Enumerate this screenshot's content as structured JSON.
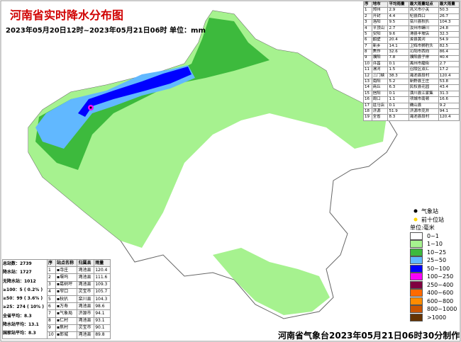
{
  "header": {
    "title": "河南省实时降水分布图",
    "subtitle": "2023年05月20日12时~2023年05月21日06时 单位：mm"
  },
  "city_table": {
    "columns": [
      "序",
      "地市",
      "平均雨量",
      "最大雨量站点",
      "最大雨量"
    ],
    "rows": [
      [
        "1",
        "郑州",
        "2.9",
        "巩义市小关",
        "50.3"
      ],
      [
        "2",
        "开封",
        "4.4",
        "杞县西口",
        "26.7"
      ],
      [
        "3",
        "洛阳",
        "9.5",
        "栾川县秋扒",
        "104.3"
      ],
      [
        "4",
        "平顶山",
        "2.7",
        "汝州市蟒川",
        "24.8"
      ],
      [
        "5",
        "安阳",
        "9.6",
        "滑县半坡店",
        "32.3"
      ],
      [
        "6",
        "鹤壁",
        "20.4",
        "浚县黄河",
        "54.9"
      ],
      [
        "7",
        "新乡",
        "14.1",
        "卫辉市狮豹头",
        "82.5"
      ],
      [
        "8",
        "焦作",
        "32.6",
        "沁阳市西向",
        "86.4"
      ],
      [
        "9",
        "濮阳",
        "7.8",
        "濮阳县子岸",
        "40.4"
      ],
      [
        "10",
        "许昌",
        "0.1",
        "禹州市磨街",
        "2.7"
      ],
      [
        "11",
        "漯河",
        "1.5",
        "召陵区双汇",
        "17.2"
      ],
      [
        "12",
        "三门峡",
        "38.3",
        "渑池县段村",
        "120.4"
      ],
      [
        "13",
        "南阳",
        "5.2",
        "新野县王庄",
        "53.8"
      ],
      [
        "14",
        "商丘",
        "6.3",
        "民权县花园",
        "43.4"
      ],
      [
        "15",
        "信阳",
        "0.1",
        "潢川县江家集",
        "31.3"
      ],
      [
        "16",
        "周口",
        "1.1",
        "项城市南顿",
        "16.6"
      ],
      [
        "17",
        "驻马店",
        "0.1",
        "确山县",
        "9.2"
      ],
      [
        "18",
        "济源",
        "51.9",
        "济源市克井",
        "94.1"
      ],
      [
        "19",
        "全省",
        "8.3",
        "渑池县段村",
        "120.4"
      ]
    ]
  },
  "stats": [
    "总站数：2739",
    "降水站：1727",
    "无降水站：1012",
    "≥100：5 ( 0.2% )",
    "≥50：99 ( 3.6% )",
    "≥25：274 ( 10% )",
    "全省平均：8.3",
    "降水站平均：13.1",
    "国家站平均：8.3"
  ],
  "station_table": {
    "columns": [
      "序",
      "站点名称",
      "归属县",
      "雨量"
    ],
    "rows": [
      [
        "1",
        "▪寺庄",
        "渑池县",
        "120.4"
      ],
      [
        "2",
        "▪堰坞",
        "渑池县",
        "111.6"
      ],
      [
        "3",
        "▪葛树坪",
        "渑池县",
        "109.3"
      ],
      [
        "4",
        "▪窄口",
        "灵宝市",
        "105.7"
      ],
      [
        "5",
        "▪秋扒",
        "栾川县",
        "104.3"
      ],
      [
        "6",
        "▪万寿",
        "渑池县",
        "98.6"
      ],
      [
        "7",
        "▪气象局",
        "济源市",
        "94.1"
      ],
      [
        "8",
        "▪仁村",
        "渑池县",
        "93.1"
      ],
      [
        "9",
        "▪焦村",
        "灵宝市",
        "90.1"
      ],
      [
        "10",
        "▪郎城",
        "渑池县",
        "89.8"
      ]
    ]
  },
  "legend": {
    "station": "气象站",
    "top10": "前十位站",
    "unit": "单位:毫米",
    "classes": [
      {
        "label": "0~1",
        "color": "#ffffff"
      },
      {
        "label": "1~10",
        "color": "#a6f28f"
      },
      {
        "label": "10~25",
        "color": "#3dba3d"
      },
      {
        "label": "25~50",
        "color": "#61b8ff"
      },
      {
        "label": "50~100",
        "color": "#0000ff"
      },
      {
        "label": "100~250",
        "color": "#fa00fa"
      },
      {
        "label": "250~400",
        "color": "#800040"
      },
      {
        "label": "400~600",
        "color": "#ff6a00"
      },
      {
        "label": "600~800",
        "color": "#ff8c00"
      },
      {
        "label": "800~1000",
        "color": "#cc5500"
      },
      {
        "label": ">1000",
        "color": "#663300"
      }
    ]
  },
  "footer": "河南省气象台2023年05月21日06时30分制作"
}
